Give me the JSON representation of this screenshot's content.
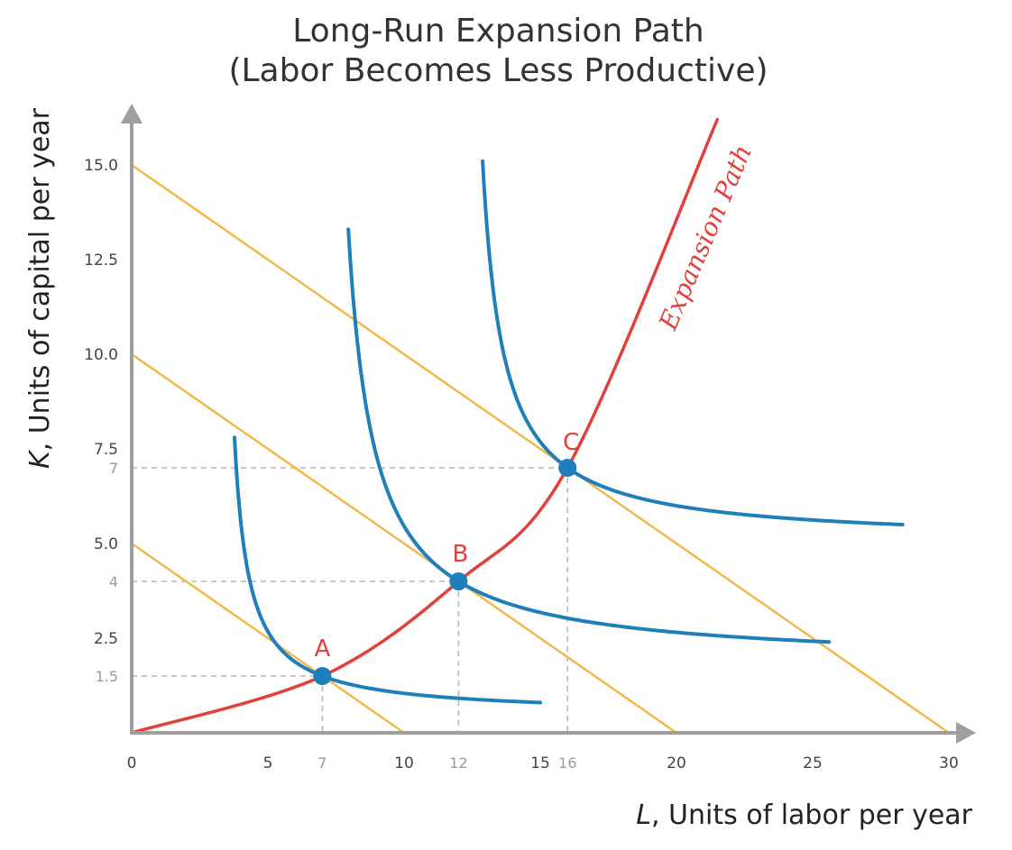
{
  "chart_data": {
    "type": "line",
    "title": "Long-Run Expansion Path",
    "subtitle": "(Labor Becomes Less Productive)",
    "xlabel_var": "L",
    "xlabel_text": ", Units of labor per year",
    "ylabel_var": "K",
    "ylabel_text": ", Units of capital per year",
    "xlim": [
      0,
      30
    ],
    "ylim": [
      0,
      15.5
    ],
    "x_ticks": [
      "0",
      "5",
      "10",
      "15",
      "20",
      "25",
      "30"
    ],
    "y_ticks": [
      "2.5",
      "5.0",
      "7.5",
      "10.0",
      "12.5",
      "15.0"
    ],
    "x_ref_ticks": [
      "7",
      "12",
      "16"
    ],
    "y_ref_ticks": [
      "1.5",
      "4",
      "7"
    ],
    "points": [
      {
        "name": "A",
        "L": 7,
        "K": 1.5
      },
      {
        "name": "B",
        "L": 12,
        "K": 4
      },
      {
        "name": "C",
        "L": 16,
        "K": 7
      }
    ],
    "isocost_lines": [
      {
        "L_intercept": 10,
        "K_intercept": 5
      },
      {
        "L_intercept": 20,
        "K_intercept": 10
      },
      {
        "L_intercept": 30,
        "K_intercept": 15
      }
    ],
    "isoquants": [
      {
        "point": "A",
        "L_min": 4,
        "K_top": 7.8,
        "L_end": 15,
        "K_end": 0.8
      },
      {
        "point": "B",
        "L_min": 8,
        "K_top": 13.3,
        "L_end": 25.6,
        "K_end": 2.4
      },
      {
        "point": "C",
        "L_min": 12.9,
        "K_top": 15.1,
        "L_end": 28.3,
        "K_end": 5.5
      }
    ],
    "expansion_path": {
      "label": "Expansion Path",
      "points": [
        [
          0,
          0
        ],
        [
          7,
          1.5
        ],
        [
          12,
          4
        ],
        [
          16,
          7
        ],
        [
          21.5,
          16.2
        ]
      ]
    },
    "colors": {
      "isocost": "#f2b84b",
      "isoquant": "#1f7fba",
      "expansion": "#e2403a",
      "point": "#1f7fba",
      "axis": "#9e9e9e",
      "guide": "#b5b5b5"
    }
  }
}
